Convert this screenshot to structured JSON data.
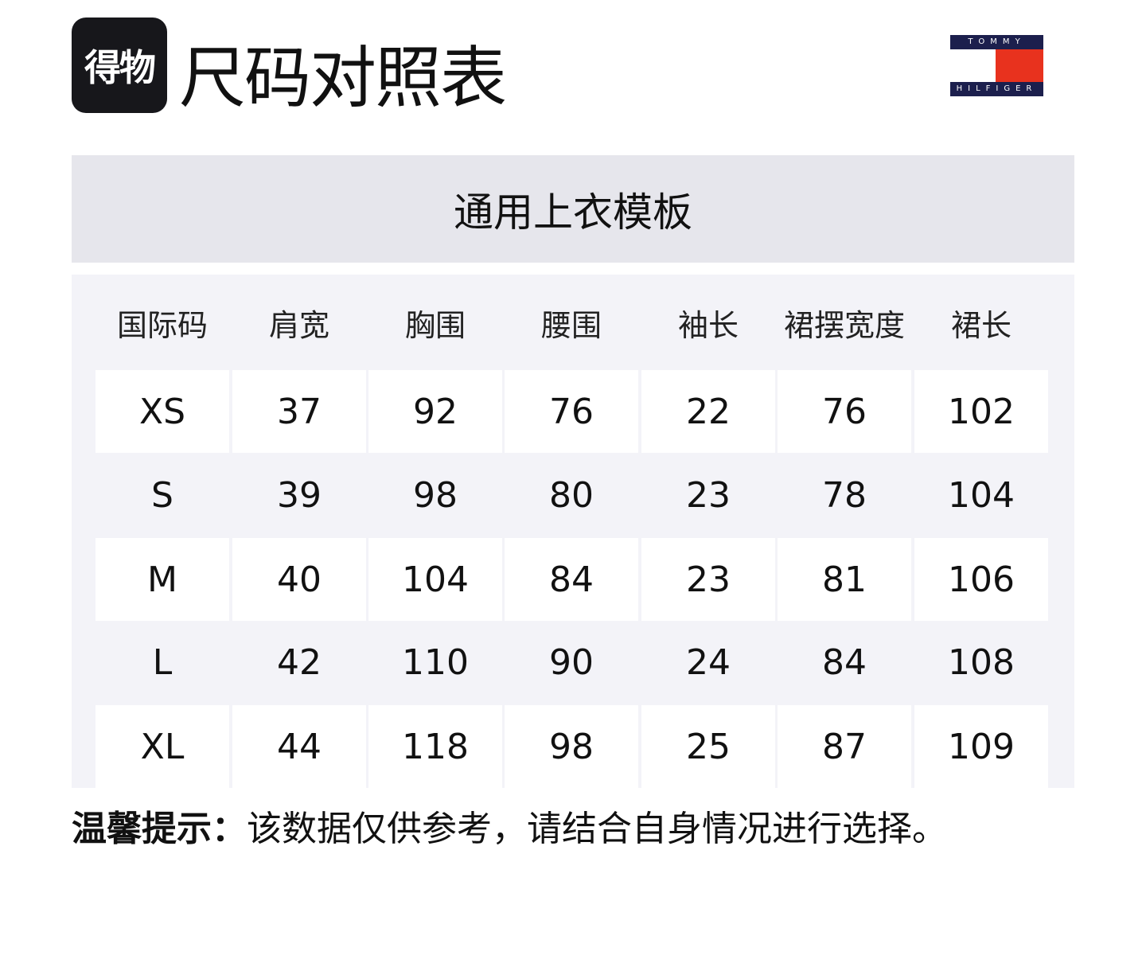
{
  "header": {
    "app_logo_text": "得物",
    "title": "尺码对照表",
    "brand_logo": {
      "top": "TOMMY",
      "bottom": "HILFIGER",
      "colors": {
        "navy": "#1c1f4d",
        "red": "#e8321e"
      }
    }
  },
  "banner": {
    "title": "通用上衣模板"
  },
  "table": {
    "columns": [
      "国际码",
      "肩宽",
      "胸围",
      "腰围",
      "袖长",
      "裙摆宽度",
      "裙长"
    ],
    "rows": [
      [
        "XS",
        "37",
        "92",
        "76",
        "22",
        "76",
        "102"
      ],
      [
        "S",
        "39",
        "98",
        "80",
        "23",
        "78",
        "104"
      ],
      [
        "M",
        "40",
        "104",
        "84",
        "23",
        "81",
        "106"
      ],
      [
        "L",
        "42",
        "110",
        "90",
        "24",
        "84",
        "108"
      ],
      [
        "XL",
        "44",
        "118",
        "98",
        "25",
        "87",
        "109"
      ]
    ]
  },
  "tip": {
    "label": "温馨提示：",
    "text": "该数据仅供参考，请结合自身情况进行选择。"
  }
}
